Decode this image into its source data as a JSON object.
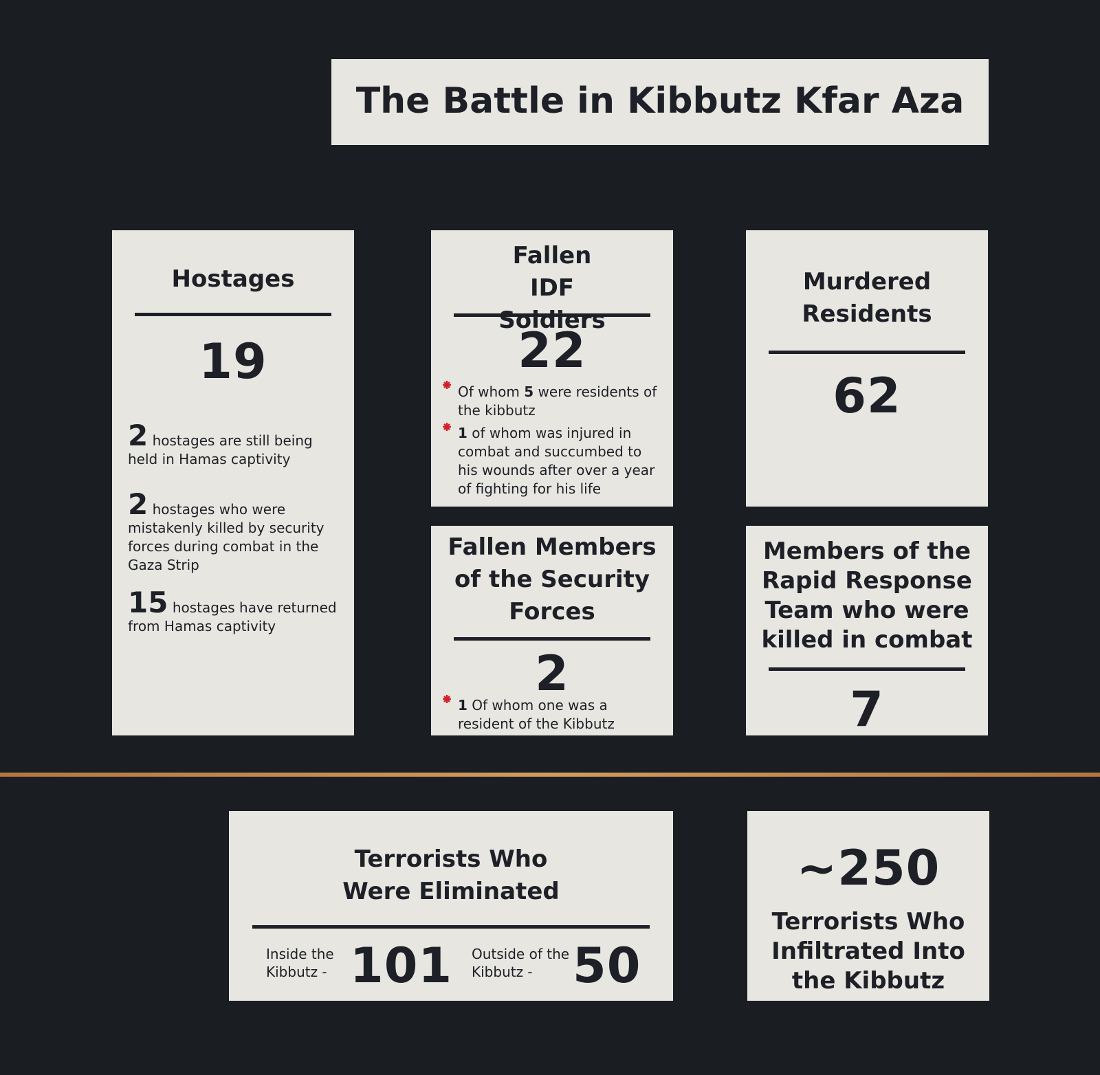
{
  "header": {
    "title": "The Battle in Kibbutz Kfar Aza"
  },
  "cards": {
    "hostages": {
      "title": "Hostages",
      "number": 19,
      "notes": [
        {
          "num": 2,
          "text": "hostages are still being held in Hamas captivity"
        },
        {
          "num": 2,
          "text": "hostages who were mistakenly killed by security forces during combat in the Gaza Strip"
        },
        {
          "num": 15,
          "text": "hostages have returned from Hamas captivity"
        }
      ]
    },
    "soldiers": {
      "title": "Fallen IDF Soldiers",
      "number": 22,
      "notes": [
        {
          "pre": "Of whom",
          "num": 5,
          "post": "were residents of the kibbutz"
        },
        {
          "num": 1,
          "post": "of whom was injured in combat and succumbed to his wounds after over a year of fighting for his life"
        }
      ]
    },
    "residents": {
      "title": "Murdered Residents",
      "number": 62
    },
    "security": {
      "title": "Fallen Members of the Security Forces",
      "number": 2,
      "notes": [
        {
          "num": 1,
          "post": "Of whom one was a resident of the Kibbutz"
        }
      ]
    },
    "rapid": {
      "title": "Members of the Rapid Response Team who were killed in combat",
      "number": 7
    },
    "eliminated": {
      "title": "Terrorists Who Were Eliminated",
      "inside_label": "Inside the Kibbutz -",
      "inside": 101,
      "outside_label": "Outside of the Kibbutz -",
      "outside": 50
    },
    "infiltrated": {
      "number": "~250",
      "title": "Terrorists Who Infiltrated Into the Kibbutz"
    }
  }
}
